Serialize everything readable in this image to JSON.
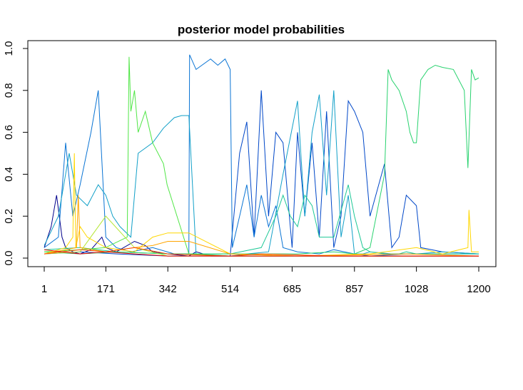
{
  "chart_data": {
    "type": "line",
    "title": "posterior model probabilities",
    "xlabel": "",
    "ylabel": "",
    "xlim": [
      1,
      1200
    ],
    "ylim": [
      0,
      1
    ],
    "x_ticks": [
      "1",
      "171",
      "342",
      "514",
      "685",
      "857",
      "1028",
      "1200"
    ],
    "x_tick_values": [
      1,
      171,
      342,
      514,
      685,
      857,
      1028,
      1200
    ],
    "y_ticks": [
      "0.0",
      "0.2",
      "0.4",
      "0.6",
      "0.8",
      "1.0"
    ],
    "y_tick_values": [
      0,
      0.2,
      0.4,
      0.6,
      0.8,
      1.0
    ],
    "grid": false,
    "legend": "none",
    "series": [
      {
        "color": "#00008b",
        "x": [
          1,
          20,
          35,
          50,
          60,
          80,
          100,
          130,
          160,
          171,
          200,
          250,
          280,
          300,
          342,
          400,
          420,
          460,
          514,
          600,
          700,
          800,
          900,
          1000,
          1100,
          1200
        ],
        "values": [
          0.05,
          0.15,
          0.3,
          0.1,
          0.05,
          0.03,
          0.02,
          0.04,
          0.1,
          0.05,
          0.03,
          0.08,
          0.06,
          0.03,
          0.02,
          0.01,
          0.03,
          0.01,
          0.01,
          0.01,
          0.01,
          0.01,
          0.01,
          0.01,
          0.01,
          0.01
        ]
      },
      {
        "color": "#0047c8",
        "x": [
          1,
          100,
          200,
          342,
          514,
          540,
          560,
          580,
          600,
          620,
          640,
          660,
          685,
          700,
          720,
          740,
          760,
          780,
          800,
          820,
          840,
          857,
          880,
          900,
          940,
          960,
          980,
          1000,
          1028,
          1040,
          1100,
          1200
        ],
        "values": [
          0.02,
          0.03,
          0.02,
          0.01,
          0.01,
          0.5,
          0.65,
          0.1,
          0.8,
          0.2,
          0.6,
          0.55,
          0.05,
          0.6,
          0.2,
          0.55,
          0.1,
          0.7,
          0.05,
          0.2,
          0.75,
          0.7,
          0.6,
          0.2,
          0.45,
          0.05,
          0.1,
          0.3,
          0.25,
          0.05,
          0.03,
          0.02
        ]
      },
      {
        "color": "#0a74d4",
        "x": [
          1,
          40,
          60,
          80,
          100,
          130,
          150,
          171,
          200,
          240,
          300,
          360,
          400,
          402,
          420,
          460,
          480,
          500,
          514,
          520,
          540,
          560,
          580,
          600,
          620,
          640,
          660,
          700,
          760,
          800,
          857,
          900,
          1000,
          1200
        ],
        "values": [
          0.05,
          0.1,
          0.55,
          0.2,
          0.35,
          0.6,
          0.8,
          0.1,
          0.05,
          0.03,
          0.05,
          0.02,
          0.02,
          0.97,
          0.9,
          0.95,
          0.92,
          0.95,
          0.9,
          0.05,
          0.2,
          0.35,
          0.1,
          0.3,
          0.15,
          0.25,
          0.05,
          0.03,
          0.02,
          0.04,
          0.02,
          0.01,
          0.02,
          0.02
        ]
      },
      {
        "color": "#12a0c8",
        "x": [
          1,
          40,
          70,
          90,
          120,
          150,
          171,
          190,
          210,
          240,
          260,
          300,
          330,
          360,
          380,
          400,
          420,
          514,
          560,
          620,
          660,
          700,
          720,
          740,
          760,
          780,
          800,
          820,
          840,
          857,
          880,
          900,
          960,
          1028,
          1100,
          1200
        ],
        "values": [
          0.06,
          0.2,
          0.5,
          0.3,
          0.25,
          0.35,
          0.3,
          0.2,
          0.15,
          0.1,
          0.5,
          0.55,
          0.62,
          0.67,
          0.68,
          0.68,
          0.02,
          0.01,
          0.02,
          0.03,
          0.4,
          0.75,
          0.2,
          0.6,
          0.78,
          0.3,
          0.8,
          0.1,
          0.3,
          0.02,
          0.02,
          0.03,
          0.02,
          0.02,
          0.03,
          0.02
        ]
      },
      {
        "color": "#1ec896",
        "x": [
          1,
          100,
          200,
          342,
          514,
          600,
          640,
          660,
          680,
          700,
          720,
          740,
          760,
          800,
          840,
          857,
          880,
          900,
          940,
          980,
          1000,
          1028,
          1060,
          1100,
          1200
        ],
        "values": [
          0.04,
          0.05,
          0.03,
          0.02,
          0.02,
          0.05,
          0.2,
          0.3,
          0.2,
          0.15,
          0.3,
          0.25,
          0.1,
          0.1,
          0.35,
          0.2,
          0.05,
          0.03,
          0.02,
          0.02,
          0.03,
          0.02,
          0.02,
          0.02,
          0.02
        ]
      },
      {
        "color": "#28d26e",
        "x": [
          1,
          100,
          200,
          342,
          514,
          600,
          700,
          800,
          857,
          900,
          940,
          950,
          960,
          980,
          1000,
          1010,
          1020,
          1028,
          1040,
          1060,
          1080,
          1100,
          1130,
          1160,
          1170,
          1180,
          1190,
          1200
        ],
        "values": [
          0.03,
          0.02,
          0.03,
          0.02,
          0.02,
          0.02,
          0.02,
          0.03,
          0.02,
          0.05,
          0.4,
          0.9,
          0.85,
          0.8,
          0.7,
          0.6,
          0.55,
          0.55,
          0.85,
          0.9,
          0.92,
          0.91,
          0.9,
          0.8,
          0.43,
          0.9,
          0.85,
          0.86
        ]
      },
      {
        "color": "#50e646",
        "x": [
          1,
          100,
          170,
          230,
          235,
          240,
          250,
          260,
          280,
          300,
          330,
          340,
          400,
          514,
          700,
          900,
          1200
        ],
        "values": [
          0.03,
          0.04,
          0.05,
          0.1,
          0.96,
          0.7,
          0.8,
          0.6,
          0.7,
          0.55,
          0.45,
          0.35,
          0.02,
          0.01,
          0.01,
          0.01,
          0.01
        ]
      },
      {
        "color": "#b4e632",
        "x": [
          1,
          100,
          171,
          250,
          342,
          514,
          800,
          1200
        ],
        "values": [
          0.02,
          0.03,
          0.2,
          0.05,
          0.01,
          0.01,
          0.01,
          0.01
        ]
      },
      {
        "color": "#ffd700",
        "x": [
          1,
          60,
          80,
          84,
          88,
          100,
          120,
          171,
          250,
          300,
          342,
          400,
          514,
          700,
          900,
          1028,
          1100,
          1170,
          1173,
          1180,
          1200
        ],
        "values": [
          0.02,
          0.05,
          0.1,
          0.5,
          0.05,
          0.15,
          0.1,
          0.05,
          0.03,
          0.1,
          0.12,
          0.12,
          0.02,
          0.01,
          0.02,
          0.05,
          0.02,
          0.05,
          0.23,
          0.03,
          0.03
        ]
      },
      {
        "color": "#ffa500",
        "x": [
          1,
          90,
          95,
          100,
          171,
          250,
          300,
          342,
          400,
          514,
          700,
          1000,
          1200
        ],
        "values": [
          0.02,
          0.05,
          0.3,
          0.05,
          0.03,
          0.05,
          0.06,
          0.08,
          0.08,
          0.02,
          0.01,
          0.02,
          0.01
        ]
      },
      {
        "color": "#ff4500",
        "x": [
          1,
          100,
          171,
          250,
          342,
          514,
          600,
          800,
          1000,
          1200
        ],
        "values": [
          0.02,
          0.04,
          0.03,
          0.05,
          0.02,
          0.01,
          0.02,
          0.01,
          0.01,
          0.01
        ]
      },
      {
        "color": "#e60000",
        "x": [
          1,
          50,
          100,
          171,
          250,
          342,
          400,
          514,
          700,
          900,
          1028,
          1200
        ],
        "values": [
          0.04,
          0.03,
          0.02,
          0.03,
          0.02,
          0.01,
          0.01,
          0.01,
          0.01,
          0.01,
          0.01,
          0.01
        ]
      }
    ]
  }
}
